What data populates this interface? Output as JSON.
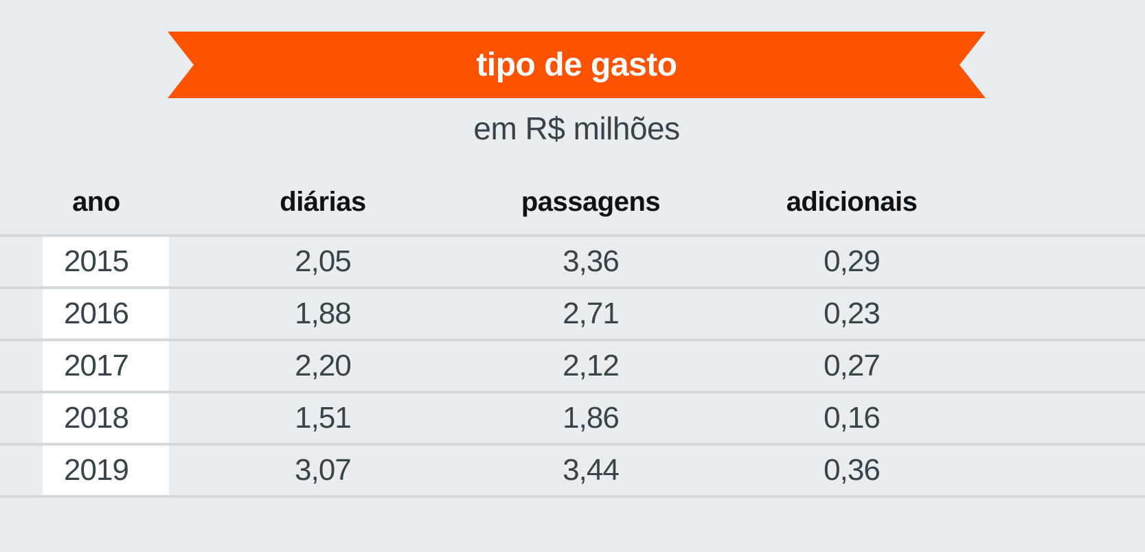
{
  "banner": {
    "title": "tipo de gasto"
  },
  "subtitle": "em R$ milhões",
  "table": {
    "columns": [
      "ano",
      "diárias",
      "passagens",
      "adicionais"
    ],
    "rows": [
      {
        "year": "2015",
        "values": [
          "2,05",
          "3,36",
          "0,29"
        ]
      },
      {
        "year": "2016",
        "values": [
          "1,88",
          "2,71",
          "0,23"
        ]
      },
      {
        "year": "2017",
        "values": [
          "2,20",
          "2,12",
          "0,27"
        ]
      },
      {
        "year": "2018",
        "values": [
          "1,51",
          "1,86",
          "0,16"
        ]
      },
      {
        "year": "2019",
        "values": [
          "3,07",
          "3,44",
          "0,36"
        ]
      }
    ]
  },
  "chart_data": {
    "type": "table",
    "title": "tipo de gasto",
    "subtitle": "em R$ milhões",
    "unit": "R$ milhões",
    "categories": [
      "2015",
      "2016",
      "2017",
      "2018",
      "2019"
    ],
    "series": [
      {
        "name": "diárias",
        "values": [
          2.05,
          1.88,
          2.2,
          1.51,
          3.07
        ]
      },
      {
        "name": "passagens",
        "values": [
          3.36,
          2.71,
          2.12,
          1.86,
          3.44
        ]
      },
      {
        "name": "adicionais",
        "values": [
          0.29,
          0.23,
          0.27,
          0.16,
          0.36
        ]
      }
    ]
  },
  "colors": {
    "accent": "#fc5301",
    "banner-text": "#ffffff",
    "page-bg": "#e9edef",
    "divider": "#d3d9dc",
    "heading": "#101214",
    "text-dark": "#39434a",
    "band": "#ffffff"
  }
}
